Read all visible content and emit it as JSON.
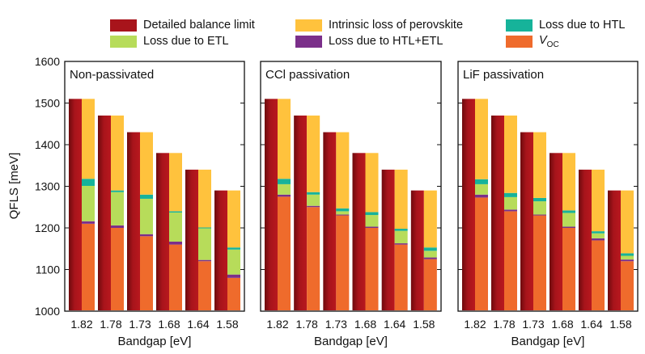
{
  "colors": {
    "detailed": "#a8141b",
    "detailed_dark": "#6e0a0d",
    "perovskite": "#ffc23d",
    "htl": "#16b39a",
    "etl": "#b7dc5a",
    "htl_etl": "#7b2f8a",
    "voc": "#ef6b2c"
  },
  "legend": {
    "items": [
      {
        "key": "detailed",
        "label": "Detailed balance limit"
      },
      {
        "key": "perovskite",
        "label": "Intrinsic loss of perovskite"
      },
      {
        "key": "htl",
        "label": "Loss due to HTL"
      },
      {
        "key": "etl",
        "label": "Loss due to ETL"
      },
      {
        "key": "htl_etl",
        "label": "Loss due to HTL+ETL"
      },
      {
        "key": "voc",
        "label": "V",
        "sub": "OC"
      }
    ]
  },
  "chart_data": [
    {
      "type": "bar",
      "title": "Non-passivated",
      "xlabel": "Bandgap [eV]",
      "ylabel": "QFLS [meV]",
      "ylim": [
        1000,
        1600
      ],
      "yticks": [
        1000,
        1100,
        1200,
        1300,
        1400,
        1500,
        1600
      ],
      "categories": [
        "1.82",
        "1.78",
        "1.73",
        "1.68",
        "1.64",
        "1.58"
      ],
      "detailed_balance_limit": [
        1510,
        1470,
        1430,
        1380,
        1340,
        1290
      ],
      "stack_bottom_to_top": {
        "voc": [
          1210,
          1200,
          1180,
          1160,
          1120,
          1080
        ],
        "loss_htl_etl": [
          6,
          6,
          5,
          7,
          3,
          8
        ],
        "loss_etl": [
          85,
          80,
          85,
          70,
          76,
          60
        ],
        "loss_htl": [
          17,
          4,
          10,
          3,
          2,
          5
        ],
        "intrinsic_loss_perovskite": [
          192,
          180,
          150,
          140,
          139,
          137
        ]
      }
    },
    {
      "type": "bar",
      "title": "CCl passivation",
      "xlabel": "Bandgap [eV]",
      "ylabel": "QFLS [meV]",
      "ylim": [
        1000,
        1600
      ],
      "yticks": [
        1000,
        1100,
        1200,
        1300,
        1400,
        1500,
        1600
      ],
      "categories": [
        "1.82",
        "1.78",
        "1.73",
        "1.68",
        "1.64",
        "1.58"
      ],
      "detailed_balance_limit": [
        1510,
        1470,
        1430,
        1380,
        1340,
        1290
      ],
      "stack_bottom_to_top": {
        "voc": [
          1275,
          1250,
          1230,
          1200,
          1160,
          1125
        ],
        "loss_htl_etl": [
          5,
          3,
          2,
          3,
          3,
          4
        ],
        "loss_etl": [
          25,
          27,
          8,
          28,
          30,
          16
        ],
        "loss_htl": [
          13,
          6,
          7,
          7,
          5,
          8
        ],
        "intrinsic_loss_perovskite": [
          192,
          184,
          183,
          142,
          142,
          137
        ]
      }
    },
    {
      "type": "bar",
      "title": "LiF passivation",
      "xlabel": "Bandgap [eV]",
      "ylabel": "QFLS [meV]",
      "ylim": [
        1000,
        1600
      ],
      "yticks": [
        1000,
        1100,
        1200,
        1300,
        1400,
        1500,
        1600
      ],
      "categories": [
        "1.82",
        "1.78",
        "1.73",
        "1.68",
        "1.64",
        "1.58"
      ],
      "detailed_balance_limit": [
        1510,
        1470,
        1430,
        1380,
        1340,
        1290
      ],
      "stack_bottom_to_top": {
        "voc": [
          1273,
          1240,
          1230,
          1200,
          1170,
          1120
        ],
        "loss_htl_etl": [
          7,
          4,
          2,
          3,
          5,
          4
        ],
        "loss_etl": [
          25,
          30,
          32,
          33,
          12,
          9
        ],
        "loss_htl": [
          12,
          10,
          8,
          6,
          5,
          6
        ],
        "intrinsic_loss_perovskite": [
          193,
          186,
          158,
          138,
          148,
          151
        ]
      }
    }
  ]
}
